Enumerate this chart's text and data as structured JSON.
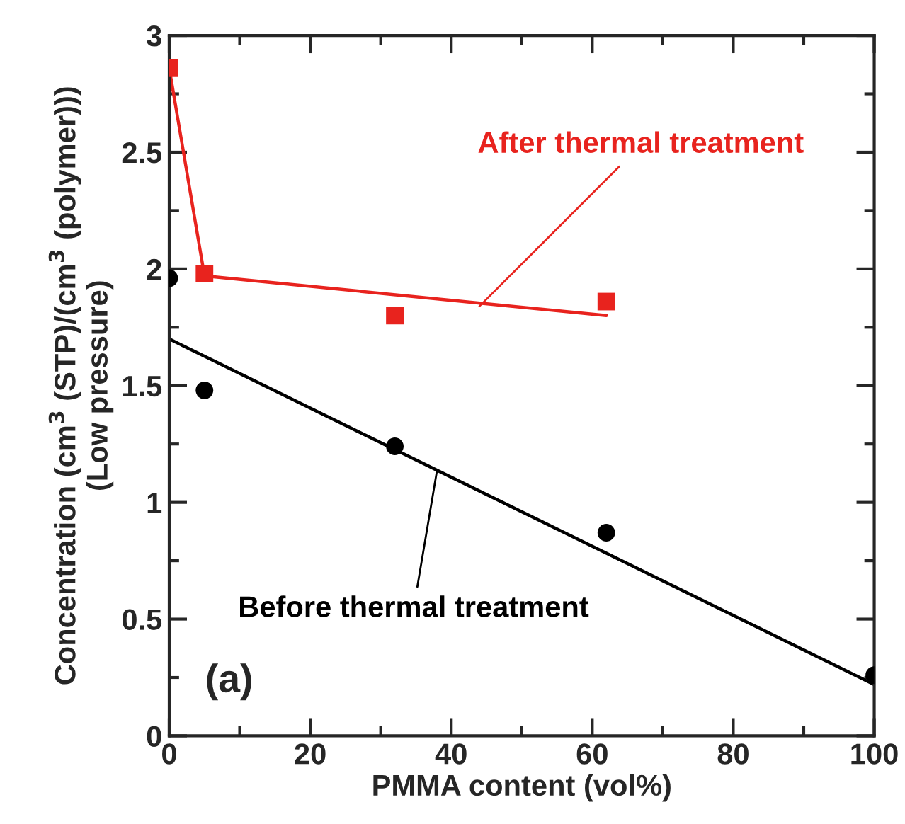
{
  "chart_data": {
    "type": "scatter",
    "xlabel": "PMMA content (vol%)",
    "ylabel": "Concentration (cm$^{3}$ (STP)/(cm$^{3}$ (polymer)))\n(Low pressure)",
    "xlim": [
      0,
      100
    ],
    "xticks": [
      0,
      20,
      40,
      60,
      80,
      100
    ],
    "ylim": [
      0,
      3
    ],
    "yticks": [
      0,
      0.5,
      1,
      1.5,
      2,
      2.5,
      3
    ],
    "grid": false,
    "legend": false,
    "series": [
      {
        "type": "line",
        "color": "#000000",
        "x": [
          0,
          100
        ],
        "values": [
          1.7,
          0.22
        ],
        "marker": "none"
      },
      {
        "type": "line",
        "color": "#e8231e",
        "x": [
          0,
          5,
          62
        ],
        "values": [
          2.86,
          1.97,
          1.8
        ],
        "marker": "none"
      },
      {
        "color": "#000000",
        "x": [
          0,
          5,
          32,
          62,
          100
        ],
        "values": [
          1.96,
          1.48,
          1.24,
          0.87,
          0.26
        ],
        "marker": "circle"
      },
      {
        "color": "#e8231e",
        "x": [
          0,
          5,
          32,
          62
        ],
        "values": [
          2.86,
          1.98,
          1.8,
          1.86
        ],
        "marker": "square"
      }
    ],
    "annotations": [
      {
        "text": "After thermal treatment",
        "x": 44,
        "y": 1.84
      },
      {
        "text": "Before thermal treatment",
        "x": 38,
        "y": 1.14
      },
      "(a)"
    ]
  }
}
